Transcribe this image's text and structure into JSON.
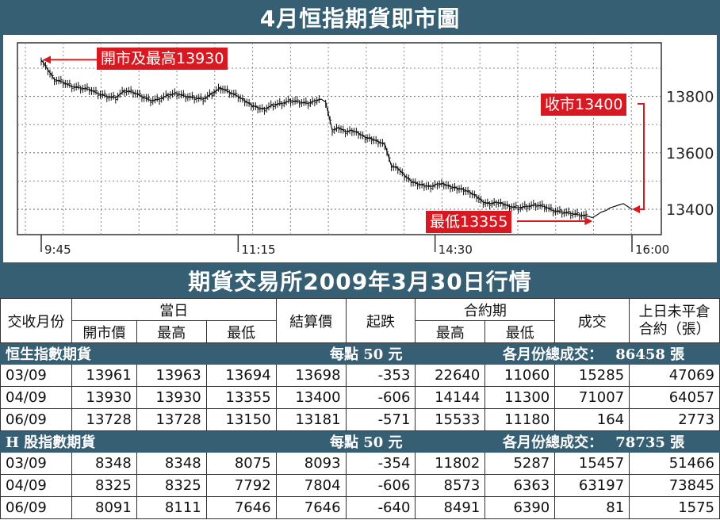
{
  "chart_title": "4月恒指期貨即市圖",
  "chart_data": {
    "type": "line",
    "x_ticks": [
      "9:45",
      "11:15",
      "14:30",
      "16:00"
    ],
    "y_ticks": [
      13400,
      13600,
      13800
    ],
    "ylim": [
      13310,
      13990
    ],
    "grid": true,
    "series_points": [
      [
        0,
        13930
      ],
      [
        3,
        13895
      ],
      [
        6,
        13860
      ],
      [
        10,
        13850
      ],
      [
        14,
        13835
      ],
      [
        18,
        13830
      ],
      [
        22,
        13825
      ],
      [
        26,
        13810
      ],
      [
        30,
        13800
      ],
      [
        34,
        13795
      ],
      [
        38,
        13820
      ],
      [
        42,
        13815
      ],
      [
        46,
        13800
      ],
      [
        50,
        13785
      ],
      [
        54,
        13790
      ],
      [
        58,
        13805
      ],
      [
        62,
        13810
      ],
      [
        66,
        13800
      ],
      [
        70,
        13795
      ],
      [
        74,
        13790
      ],
      [
        78,
        13810
      ],
      [
        82,
        13830
      ],
      [
        86,
        13815
      ],
      [
        90,
        13800
      ],
      [
        93,
        13785
      ],
      [
        96,
        13770
      ],
      [
        99,
        13760
      ],
      [
        102,
        13755
      ],
      [
        106,
        13770
      ],
      [
        110,
        13775
      ],
      [
        114,
        13785
      ],
      [
        118,
        13780
      ],
      [
        122,
        13775
      ],
      [
        125,
        13785
      ],
      [
        128,
        13790
      ],
      [
        130,
        13780
      ],
      [
        133,
        13680
      ],
      [
        136,
        13690
      ],
      [
        139,
        13675
      ],
      [
        142,
        13680
      ],
      [
        145,
        13670
      ],
      [
        148,
        13655
      ],
      [
        151,
        13650
      ],
      [
        154,
        13640
      ],
      [
        157,
        13630
      ],
      [
        160,
        13555
      ],
      [
        163,
        13545
      ],
      [
        166,
        13520
      ],
      [
        169,
        13500
      ],
      [
        172,
        13490
      ],
      [
        175,
        13485
      ],
      [
        178,
        13480
      ],
      [
        181,
        13490
      ],
      [
        184,
        13490
      ],
      [
        187,
        13480
      ],
      [
        190,
        13475
      ],
      [
        193,
        13470
      ],
      [
        196,
        13460
      ],
      [
        199,
        13445
      ],
      [
        202,
        13425
      ],
      [
        205,
        13420
      ],
      [
        208,
        13425
      ],
      [
        211,
        13420
      ],
      [
        214,
        13410
      ],
      [
        218,
        13405
      ],
      [
        222,
        13410
      ],
      [
        226,
        13415
      ],
      [
        230,
        13410
      ],
      [
        234,
        13395
      ],
      [
        238,
        13390
      ],
      [
        242,
        13385
      ],
      [
        246,
        13380
      ],
      [
        250,
        13375
      ],
      [
        252,
        13370
      ],
      [
        254,
        13380
      ],
      [
        256,
        13390
      ],
      [
        258,
        13395
      ],
      [
        260,
        13405
      ],
      [
        262,
        13410
      ],
      [
        264,
        13415
      ],
      [
        266,
        13420
      ],
      [
        268,
        13410
      ],
      [
        270,
        13400
      ]
    ],
    "annotations": [
      {
        "label": "開市及最高13930"
      },
      {
        "label": "收市13400"
      },
      {
        "label": "最低13355"
      }
    ]
  },
  "table_title": "期貨交易所2009年3月30日行情",
  "columns": {
    "month": "交收月份",
    "day_group": "當日",
    "open": "開市價",
    "high": "最高",
    "low": "最低",
    "settle": "結算價",
    "change": "起跌",
    "contract_group": "合約期",
    "c_high": "最高",
    "c_low": "最低",
    "volume": "成交",
    "oi_line1": "上日未平倉",
    "oi_line2": "合約（張）"
  },
  "sections": [
    {
      "name": "恒生指數期貨",
      "unit": "每點 50 元",
      "total_label": "各月份總成交：",
      "total_value": "86458 張",
      "rows": [
        [
          "03/09",
          "13961",
          "13963",
          "13694",
          "13698",
          "-353",
          "22640",
          "11060",
          "15285",
          "47069"
        ],
        [
          "04/09",
          "13930",
          "13930",
          "13355",
          "13400",
          "-606",
          "14144",
          "11300",
          "71007",
          "64057"
        ],
        [
          "06/09",
          "13728",
          "13728",
          "13150",
          "13181",
          "-571",
          "15533",
          "11180",
          "164",
          "2773"
        ]
      ]
    },
    {
      "name": "H 股指數期貨",
      "unit": "每點 50 元",
      "total_label": "各月份總成交：",
      "total_value": "78735 張",
      "rows": [
        [
          "03/09",
          "8348",
          "8348",
          "8075",
          "8093",
          "-354",
          "11802",
          "5287",
          "15457",
          "51466"
        ],
        [
          "04/09",
          "8325",
          "8325",
          "7792",
          "7804",
          "-606",
          "8573",
          "6363",
          "63197",
          "73845"
        ],
        [
          "06/09",
          "8091",
          "8111",
          "7646",
          "7646",
          "-640",
          "8491",
          "6390",
          "81",
          "1575"
        ]
      ]
    }
  ],
  "colors": {
    "header": "#365f73",
    "accent": "#d71a21"
  }
}
